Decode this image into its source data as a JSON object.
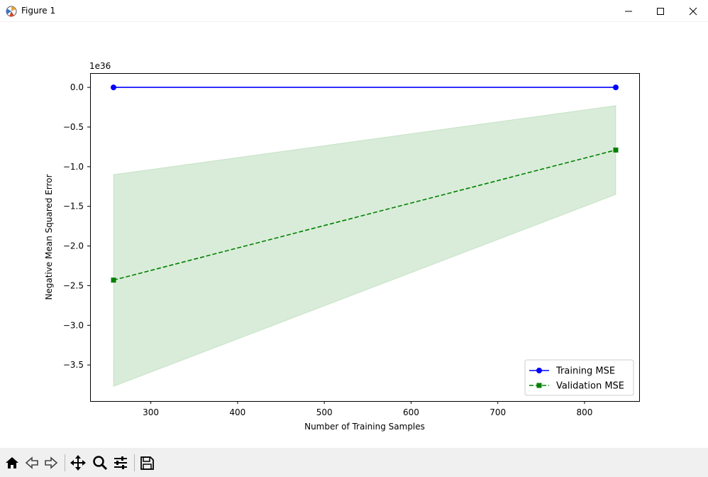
{
  "window": {
    "title": "Figure 1",
    "icon": "matplotlib-figure-icon",
    "controls": [
      "minimize-icon",
      "maximize-icon",
      "close-icon"
    ]
  },
  "toolbar": {
    "items": [
      "home-icon",
      "back-arrow-icon",
      "forward-arrow-icon",
      "pan-move-icon",
      "zoom-magnifier-icon",
      "configure-subplots-icon",
      "save-floppy-icon"
    ]
  },
  "chart_data": {
    "type": "line",
    "title": "",
    "xlabel": "Number of Training Samples",
    "ylabel": "Negative Mean Squared Error",
    "offset_text": "1e36",
    "y_scale_factor": 1e+36,
    "xlim": [
      230,
      863
    ],
    "ylim": [
      -3.955,
      0.18
    ],
    "xticks": [
      300,
      400,
      500,
      600,
      700,
      800
    ],
    "xtick_labels": [
      "300",
      "400",
      "500",
      "600",
      "700",
      "800"
    ],
    "yticks": [
      0.0,
      -0.5,
      -1.0,
      -1.5,
      -2.0,
      -2.5,
      -3.0,
      -3.5
    ],
    "ytick_labels": [
      "0.0",
      "−0.5",
      "−1.0",
      "−1.5",
      "−2.0",
      "−2.5",
      "−3.0",
      "−3.5"
    ],
    "grid": false,
    "legend_position": "lower-right",
    "series": [
      {
        "name": "Training MSE",
        "x": [
          257,
          836
        ],
        "y": [
          0.0,
          0.0
        ],
        "color": "#0000ff",
        "linestyle": "solid",
        "marker": "circle"
      },
      {
        "name": "Validation MSE",
        "x": [
          257,
          836
        ],
        "y": [
          -2.43,
          -0.79
        ],
        "color": "#008000",
        "linestyle": "dashed",
        "marker": "square",
        "band": {
          "lower": [
            -3.77,
            -1.35
          ],
          "upper": [
            -1.1,
            -0.23
          ],
          "color": "#008000",
          "alpha": 0.15
        }
      }
    ]
  }
}
